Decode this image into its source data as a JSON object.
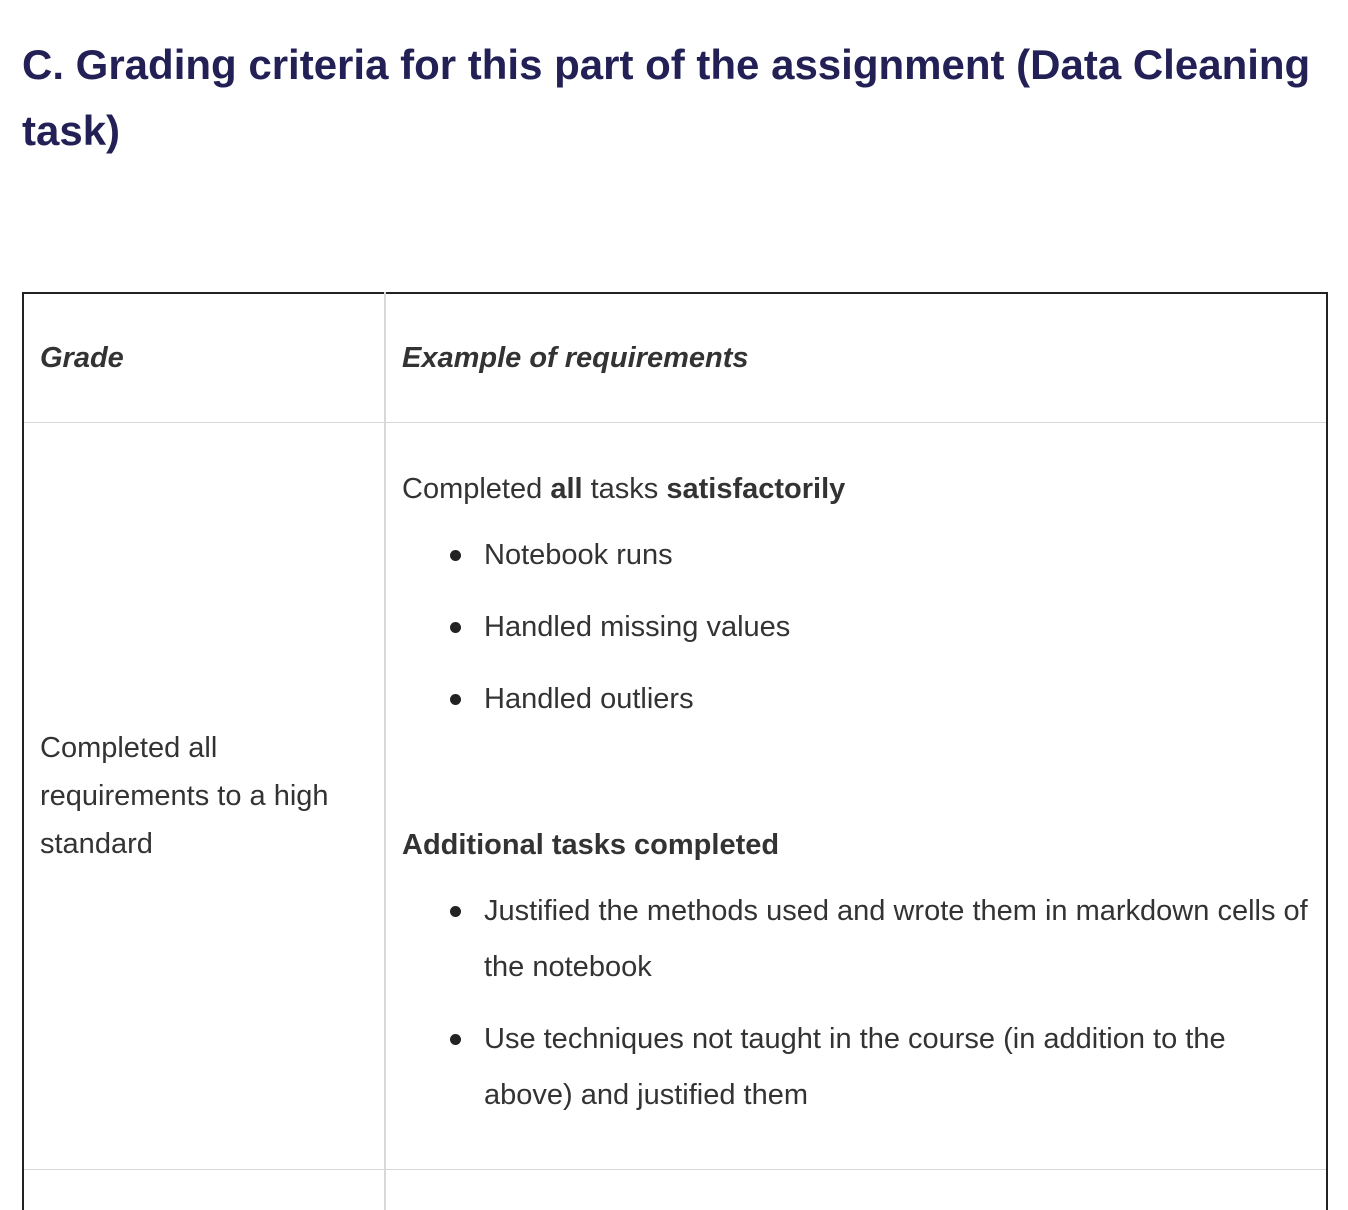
{
  "heading": "C. Grading criteria for this part of the assignment (Data Cleaning task)",
  "table": {
    "headers": {
      "grade": "Grade",
      "requirements": "Example of requirements"
    },
    "rows": [
      {
        "grade": "Completed all requirements to a high standard",
        "intro": {
          "part1": "Completed ",
          "part2": "all",
          "part3": " tasks ",
          "part4": "satisfactorily"
        },
        "basic_items": [
          "Notebook runs",
          "Handled missing values",
          "Handled outliers"
        ],
        "additional_heading": "Additional tasks completed",
        "additional_items": [
          "Justified the methods used and wrote them in markdown cells of the notebook",
          "Use techniques not taught in the course (in addition to the above) and justified them"
        ]
      }
    ]
  }
}
